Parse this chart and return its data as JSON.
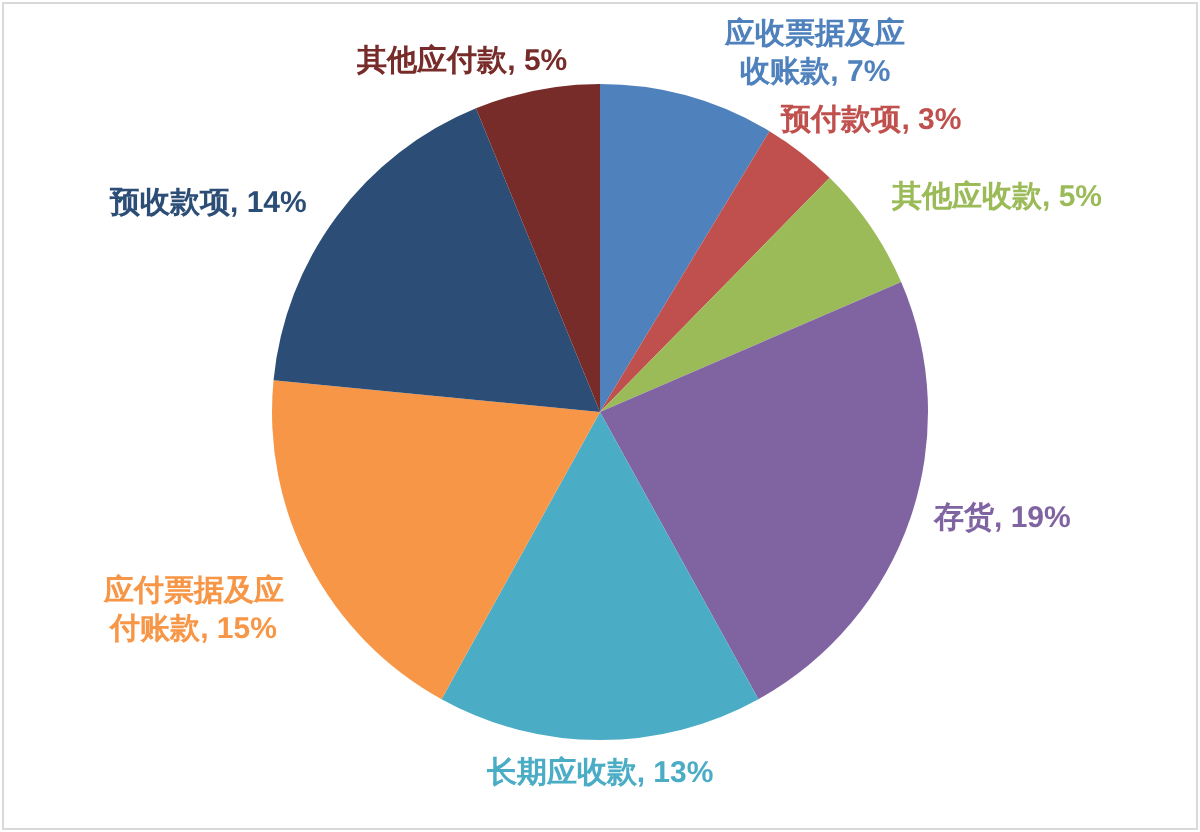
{
  "chart_data": {
    "type": "pie",
    "categories": [
      "应收票据及应收账款",
      "预付款项",
      "其他应收款",
      "存货",
      "长期应收款",
      "应付票据及应付账款",
      "预收款项",
      "其他应付款"
    ],
    "values": [
      7,
      3,
      5,
      19,
      13,
      15,
      14,
      5
    ],
    "colors": [
      "#4f81bd",
      "#c0504d",
      "#9bbb59",
      "#8064a2",
      "#4bacc6",
      "#f79646",
      "#2c4d75",
      "#772c2a"
    ],
    "value_labels": [
      "7%",
      "3%",
      "5%",
      "19%",
      "13%",
      "15%",
      "14%",
      "5%"
    ]
  }
}
